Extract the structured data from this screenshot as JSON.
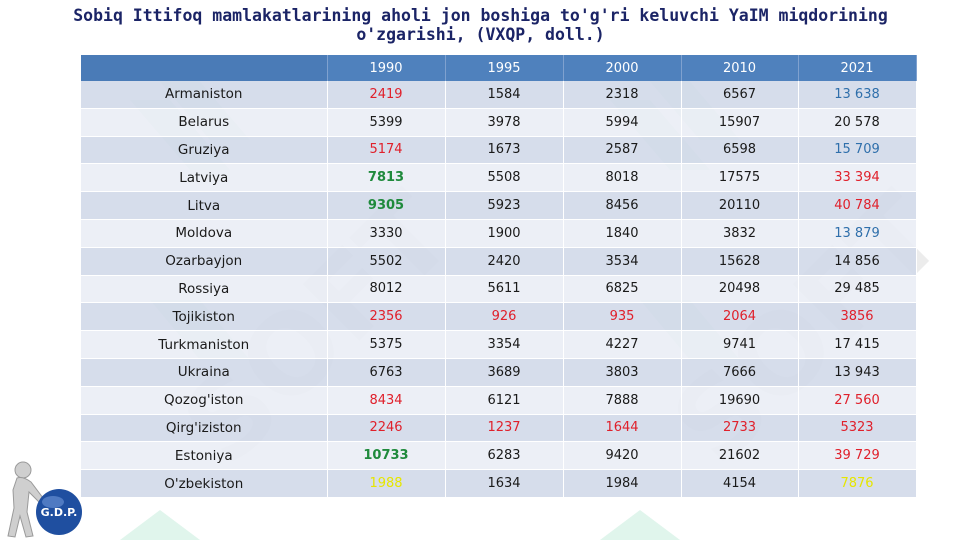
{
  "title_line1": "Sobiq Ittifoq mamlakatlarining aholi jon boshiga to'g'ri keluvchi YaIM miqdorining",
  "title_line2": "o'zgarishi, (VXQP, doll.)",
  "colors": {
    "header_bg": "#4f81bd",
    "red": "#e0202b",
    "green": "#1f8a3c",
    "blue": "#2f6fab",
    "yellow": "#e6e600",
    "default": "#1a1a1a"
  },
  "columns": [
    "",
    "1990",
    "1995",
    "2000",
    "2010",
    "2021"
  ],
  "rows": [
    {
      "country": "Armaniston",
      "values": [
        "2419",
        "1584",
        "2318",
        "6567",
        "13 638"
      ],
      "colors": [
        "red",
        "default",
        "default",
        "default",
        "blue"
      ]
    },
    {
      "country": "Belarus",
      "values": [
        "5399",
        "3978",
        "5994",
        "15907",
        "20 578"
      ],
      "colors": [
        "default",
        "default",
        "default",
        "default",
        "default"
      ]
    },
    {
      "country": "Gruziya",
      "values": [
        "5174",
        "1673",
        "2587",
        "6598",
        "15 709"
      ],
      "colors": [
        "red",
        "default",
        "default",
        "default",
        "blue"
      ]
    },
    {
      "country": "Latviya",
      "values": [
        "7813",
        "5508",
        "8018",
        "17575",
        "33 394"
      ],
      "colors": [
        "green",
        "default",
        "default",
        "default",
        "red"
      ]
    },
    {
      "country": "Litva",
      "values": [
        "9305",
        "5923",
        "8456",
        "20110",
        "40 784"
      ],
      "colors": [
        "green",
        "default",
        "default",
        "default",
        "red"
      ]
    },
    {
      "country": "Moldova",
      "values": [
        "3330",
        "1900",
        "1840",
        "3832",
        "13 879"
      ],
      "colors": [
        "default",
        "default",
        "default",
        "default",
        "blue"
      ]
    },
    {
      "country": "Ozarbayjon",
      "values": [
        "5502",
        "2420",
        "3534",
        "15628",
        "14 856"
      ],
      "colors": [
        "default",
        "default",
        "default",
        "default",
        "default"
      ]
    },
    {
      "country": "Rossiya",
      "values": [
        "8012",
        "5611",
        "6825",
        "20498",
        "29 485"
      ],
      "colors": [
        "default",
        "default",
        "default",
        "default",
        "default"
      ]
    },
    {
      "country": "Tojikiston",
      "values": [
        "2356",
        "926",
        "935",
        "2064",
        "3856"
      ],
      "colors": [
        "red",
        "red",
        "red",
        "red",
        "red"
      ]
    },
    {
      "country": "Turkmaniston",
      "values": [
        "5375",
        "3354",
        "4227",
        "9741",
        "17 415"
      ],
      "colors": [
        "default",
        "default",
        "default",
        "default",
        "default"
      ]
    },
    {
      "country": "Ukraina",
      "values": [
        "6763",
        "3689",
        "3803",
        "7666",
        "13 943"
      ],
      "colors": [
        "default",
        "default",
        "default",
        "default",
        "default"
      ]
    },
    {
      "country": "Qozog'iston",
      "values": [
        "8434",
        "6121",
        "7888",
        "19690",
        "27 560"
      ],
      "colors": [
        "red",
        "default",
        "default",
        "default",
        "red"
      ]
    },
    {
      "country": "Qirg'iziston",
      "values": [
        "2246",
        "1237",
        "1644",
        "2733",
        "5323"
      ],
      "colors": [
        "red",
        "red",
        "red",
        "red",
        "red"
      ]
    },
    {
      "country": "Estoniya",
      "values": [
        "10733",
        "6283",
        "9420",
        "21602",
        "39 729"
      ],
      "colors": [
        "green",
        "default",
        "default",
        "default",
        "red"
      ]
    },
    {
      "country": "O'zbekiston",
      "values": [
        "1988",
        "1634",
        "1984",
        "4154",
        "7876"
      ],
      "colors": [
        "yellow",
        "default",
        "default",
        "default",
        "yellow"
      ]
    }
  ],
  "logo": {
    "label": "G.D.P."
  }
}
